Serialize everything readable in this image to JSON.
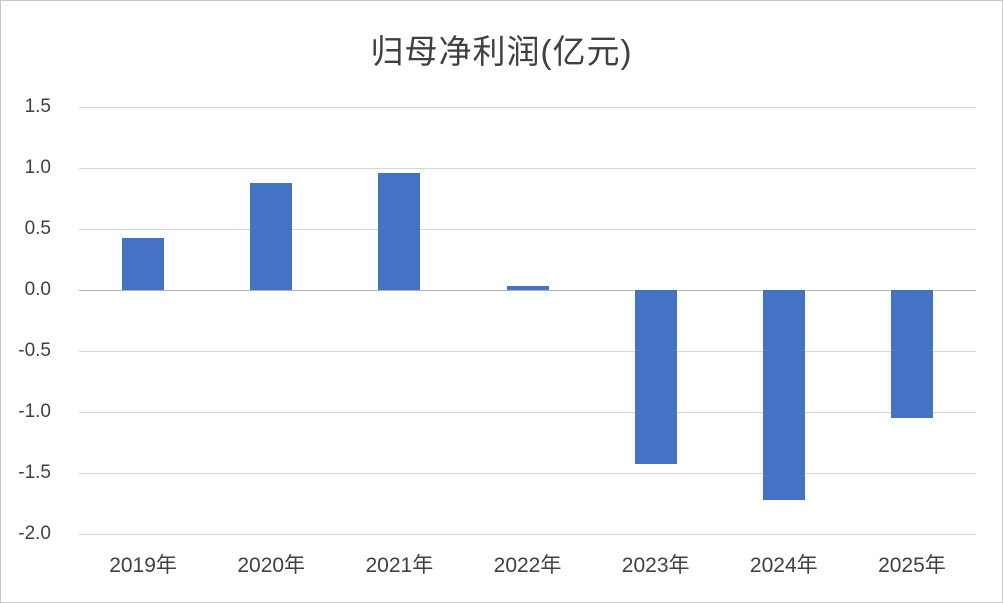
{
  "chart_data": {
    "type": "bar",
    "title": "归母净利润(亿元)",
    "categories": [
      "2019年",
      "2020年",
      "2021年",
      "2022年",
      "2023年",
      "2024年",
      "2025年"
    ],
    "values": [
      0.43,
      0.88,
      0.96,
      0.03,
      -1.43,
      -1.72,
      -1.05
    ],
    "xlabel": "",
    "ylabel": "",
    "ylim": [
      -2.0,
      1.5
    ],
    "yticks": [
      1.5,
      1.0,
      0.5,
      0.0,
      -0.5,
      -1.0,
      -1.5,
      -2.0
    ],
    "ytick_labels": [
      "1.5",
      "1.0",
      "0.5",
      "0.0",
      "-0.5",
      "-1.0",
      "-1.5",
      "-2.0"
    ],
    "grid": true,
    "legend_position": "none",
    "bar_color": "#4472C4",
    "gridline_color": "#d6d6d6",
    "axis_line_color": "#b3b3b3",
    "text_color": "#404040"
  }
}
